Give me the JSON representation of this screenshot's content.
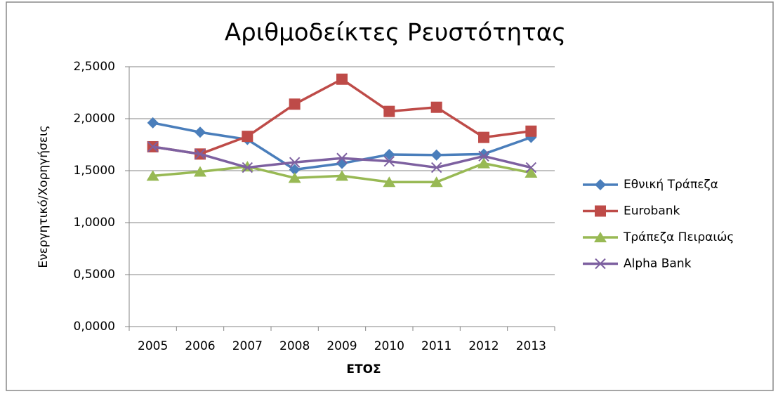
{
  "chart_data": {
    "type": "line",
    "title": "Αριθμοδείκτες Ρευστότητας",
    "xlabel": "ΕΤΟΣ",
    "ylabel": "Ενεργητικό/Χορηγήσεις",
    "categories": [
      "2005",
      "2006",
      "2007",
      "2008",
      "2009",
      "2010",
      "2011",
      "2012",
      "2013"
    ],
    "series": [
      {
        "name": "Εθνική Τράπεζα",
        "color": "#4a7ebb",
        "marker": "diamond",
        "values": [
          1.96,
          1.87,
          1.8,
          1.51,
          1.57,
          1.655,
          1.65,
          1.66,
          1.82
        ]
      },
      {
        "name": "Eurobank",
        "color": "#be4b48",
        "marker": "square",
        "values": [
          1.73,
          1.66,
          1.83,
          2.14,
          2.38,
          2.07,
          2.11,
          1.82,
          1.88
        ]
      },
      {
        "name": "Τράπεζα Πειραιώς",
        "color": "#98b954",
        "marker": "triangle",
        "values": [
          1.45,
          1.49,
          1.54,
          1.43,
          1.45,
          1.39,
          1.39,
          1.57,
          1.48
        ]
      },
      {
        "name": "Alpha Bank",
        "color": "#7d60a0",
        "marker": "x",
        "values": [
          1.73,
          1.66,
          1.53,
          1.58,
          1.62,
          1.59,
          1.53,
          1.64,
          1.53
        ]
      }
    ],
    "ylim": [
      0,
      2.5
    ],
    "yticks": [
      {
        "value": 0,
        "label": "0,0000"
      },
      {
        "value": 0.5,
        "label": "0,5000"
      },
      {
        "value": 1,
        "label": "1,0000"
      },
      {
        "value": 1.5,
        "label": "1,5000"
      },
      {
        "value": 2,
        "label": "2,0000"
      },
      {
        "value": 2.5,
        "label": "2,5000"
      }
    ],
    "grid": true,
    "legend": "right"
  }
}
